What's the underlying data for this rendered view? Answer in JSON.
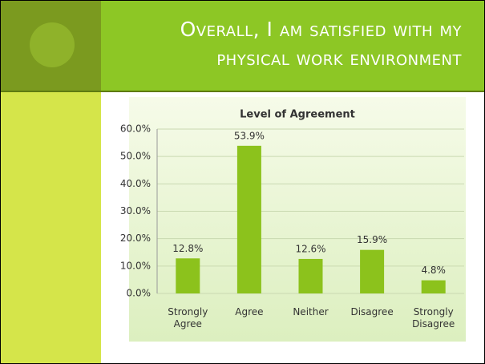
{
  "slide_title": "Overall, I am satisfied with my physical work environment",
  "chart_data": {
    "type": "bar",
    "title": "Level of Agreement",
    "categories": [
      "Strongly Agree",
      "Agree",
      "Neither",
      "Disagree",
      "Strongly Disagree"
    ],
    "values": [
      12.8,
      53.9,
      12.6,
      15.9,
      4.8
    ],
    "value_labels": [
      "12.8%",
      "53.9%",
      "12.6%",
      "15.9%",
      "4.8%"
    ],
    "color": "#8cc21c",
    "ylim": [
      0,
      60
    ],
    "yticks": [
      {
        "value": 0,
        "label": "0.0%"
      },
      {
        "value": 10,
        "label": "10.0%"
      },
      {
        "value": 20,
        "label": "20.0%"
      },
      {
        "value": 30,
        "label": "30.0%"
      },
      {
        "value": 40,
        "label": "40.0%"
      },
      {
        "value": 50,
        "label": "50.0%"
      },
      {
        "value": 60,
        "label": "60.0%"
      }
    ],
    "grid": true
  }
}
